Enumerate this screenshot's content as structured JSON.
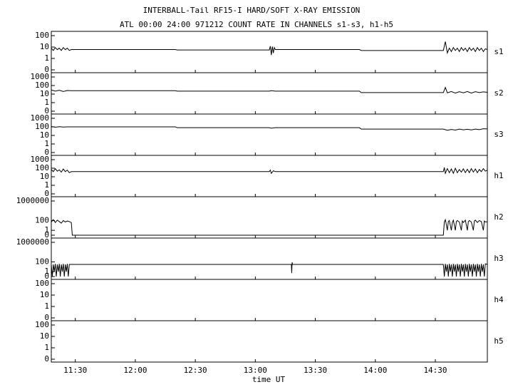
{
  "chart_data": {
    "type": "line",
    "title": "INTERBALL-Tail RF15-I HARD/SOFT X-RAY EMISSION",
    "subtitle": "ATL 00:00 24:00 971212  COUNT RATE IN CHANNELS s1-s3, h1-h5",
    "xlabel": "time UT",
    "xlim": [
      678,
      896
    ],
    "xticks": [
      {
        "value": 690,
        "label": "11:30"
      },
      {
        "value": 720,
        "label": "12:00"
      },
      {
        "value": 750,
        "label": "12:30"
      },
      {
        "value": 780,
        "label": "13:00"
      },
      {
        "value": 810,
        "label": "13:30"
      },
      {
        "value": 840,
        "label": "14:00"
      },
      {
        "value": 870,
        "label": "14:30"
      }
    ],
    "yscale": "log",
    "color": "#000000",
    "panels": [
      {
        "name": "s1",
        "ylim": [
          0,
          100
        ],
        "yticks": [
          0,
          1,
          10,
          100
        ],
        "x": [
          678,
          679,
          680,
          681,
          682,
          683,
          684,
          685,
          686,
          687,
          688,
          740,
          741,
          787,
          787.5,
          788,
          788.5,
          789,
          789.5,
          790,
          832,
          833,
          874,
          875,
          876,
          877,
          878,
          879,
          880,
          881,
          882,
          883,
          884,
          885,
          886,
          887,
          888,
          889,
          890,
          891,
          892,
          893,
          894,
          895,
          896
        ],
        "values": [
          8,
          5,
          9,
          6,
          8,
          5,
          9,
          6,
          8,
          5,
          6,
          6,
          5.5,
          5.5,
          12,
          2,
          11,
          3,
          9,
          6,
          6,
          5,
          5,
          30,
          3,
          8,
          4,
          9,
          5,
          8,
          4,
          9,
          5,
          8,
          4,
          9,
          5,
          8,
          4,
          9,
          5,
          8,
          4,
          7,
          6
        ]
      },
      {
        "name": "s2",
        "ylim": [
          0,
          1000
        ],
        "yticks": [
          0,
          1,
          10,
          100,
          1000
        ],
        "x": [
          678,
          680,
          682,
          684,
          686,
          688,
          740,
          741,
          787,
          788,
          790,
          832,
          833,
          874,
          875,
          876,
          878,
          880,
          882,
          884,
          886,
          888,
          890,
          892,
          894,
          896
        ],
        "values": [
          30,
          22,
          28,
          20,
          26,
          25,
          25,
          22,
          22,
          25,
          22,
          22,
          15,
          15,
          60,
          14,
          20,
          13,
          19,
          14,
          20,
          13,
          19,
          15,
          18,
          16
        ]
      },
      {
        "name": "s3",
        "ylim": [
          0,
          1000
        ],
        "yticks": [
          0,
          1,
          10,
          100,
          1000
        ],
        "x": [
          678,
          680,
          682,
          684,
          686,
          688,
          740,
          741,
          787,
          788,
          790,
          832,
          833,
          874,
          876,
          878,
          880,
          882,
          884,
          886,
          888,
          890,
          892,
          894,
          896
        ],
        "values": [
          110,
          90,
          105,
          95,
          100,
          100,
          100,
          80,
          80,
          70,
          80,
          80,
          55,
          55,
          40,
          50,
          42,
          55,
          45,
          52,
          44,
          55,
          48,
          60,
          58
        ]
      },
      {
        "name": "h1",
        "ylim": [
          0,
          1000
        ],
        "yticks": [
          0,
          1,
          10,
          100,
          1000
        ],
        "x": [
          678,
          679,
          680,
          681,
          682,
          683,
          684,
          685,
          686,
          687,
          688,
          787,
          787.5,
          788,
          789,
          790,
          874,
          874.5,
          875,
          876,
          877,
          878,
          879,
          880,
          881,
          882,
          883,
          884,
          885,
          886,
          887,
          888,
          889,
          890,
          891,
          892,
          893,
          894,
          895,
          896
        ],
        "values": [
          70,
          40,
          90,
          45,
          65,
          35,
          80,
          40,
          60,
          30,
          40,
          40,
          60,
          25,
          50,
          40,
          40,
          120,
          25,
          90,
          30,
          80,
          25,
          100,
          30,
          70,
          35,
          85,
          30,
          75,
          30,
          90,
          35,
          80,
          30,
          70,
          40,
          90,
          45,
          60
        ]
      },
      {
        "name": "h2",
        "ylim": [
          0,
          1000000
        ],
        "yticks": [
          0,
          1,
          100,
          1000000
        ],
        "x": [
          678,
          679,
          680,
          681,
          682,
          683,
          684,
          685,
          686,
          687,
          688,
          688.5,
          874,
          874.5,
          875,
          876,
          876.5,
          877,
          878,
          878.5,
          879,
          880,
          880.5,
          881,
          882,
          883,
          883.5,
          884,
          885,
          886,
          886.5,
          887,
          888,
          889,
          889.5,
          890,
          891,
          892,
          893,
          894,
          894.5,
          895,
          896
        ],
        "values": [
          50,
          150,
          40,
          120,
          60,
          30,
          100,
          50,
          80,
          60,
          40,
          0,
          0,
          50,
          150,
          1,
          60,
          100,
          1,
          40,
          120,
          1,
          60,
          100,
          50,
          1,
          80,
          40,
          120,
          1,
          60,
          100,
          50,
          1,
          80,
          120,
          40,
          100,
          60,
          1,
          80,
          50,
          60
        ]
      },
      {
        "name": "h3",
        "ylim": [
          0,
          1000000
        ],
        "yticks": [
          0,
          1,
          100,
          1000000
        ],
        "x": [
          678,
          678.5,
          679,
          679.5,
          680,
          680.5,
          681,
          681.5,
          682,
          682.5,
          683,
          683.5,
          684,
          684.5,
          685,
          685.5,
          686,
          686.5,
          687,
          688,
          798,
          798.2,
          798.4,
          798.6,
          874,
          874.5,
          875,
          875.5,
          876,
          876.5,
          877,
          877.5,
          878,
          878.5,
          879,
          879.5,
          880,
          880.5,
          881,
          881.5,
          882,
          882.5,
          883,
          883.5,
          884,
          884.5,
          885,
          885.5,
          886,
          886.5,
          887,
          887.5,
          888,
          888.5,
          889,
          889.5,
          890,
          890.5,
          891,
          891.5,
          892,
          892.5,
          893,
          893.5,
          894,
          894.5,
          895,
          896
        ],
        "values": [
          30,
          0,
          30,
          1,
          40,
          0,
          30,
          1,
          40,
          0,
          30,
          1,
          40,
          0,
          30,
          1,
          40,
          0,
          30,
          30,
          30,
          0.5,
          80,
          30,
          30,
          0,
          40,
          1,
          30,
          0,
          40,
          1,
          30,
          0,
          40,
          1,
          30,
          0,
          40,
          1,
          30,
          0,
          40,
          1,
          30,
          0,
          40,
          1,
          30,
          0,
          40,
          1,
          30,
          0,
          40,
          1,
          30,
          0,
          40,
          1,
          30,
          0,
          40,
          1,
          30,
          0,
          40,
          30
        ]
      },
      {
        "name": "h4",
        "ylim": [
          0,
          100
        ],
        "yticks": [
          0,
          1,
          10,
          100
        ]
      },
      {
        "name": "h5",
        "ylim": [
          0,
          100
        ],
        "yticks": [
          0,
          1,
          10,
          100
        ]
      }
    ]
  }
}
